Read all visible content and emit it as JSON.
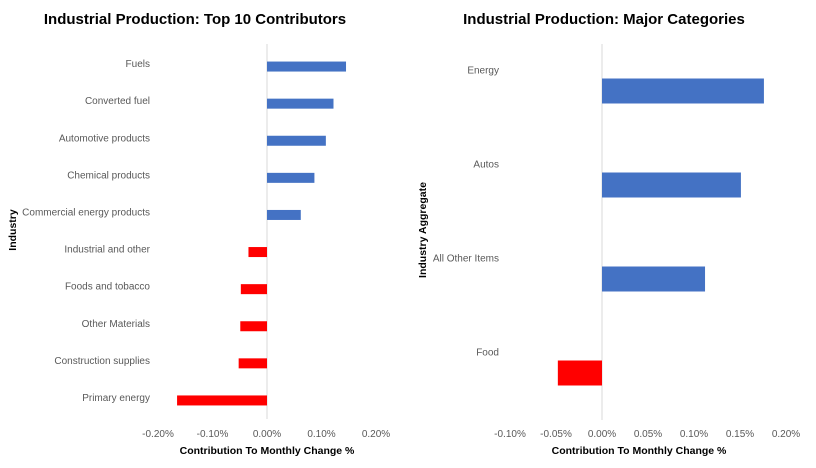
{
  "chart_data": [
    {
      "type": "bar",
      "orientation": "horizontal",
      "title": "Industrial Production: Top 10 Contributors",
      "xlabel": "Contribution To Monthly Change %",
      "ylabel": "Industry",
      "xlim": [
        -0.2,
        0.2
      ],
      "xticks": [
        -0.2,
        -0.1,
        0.0,
        0.1,
        0.2
      ],
      "xtick_labels": [
        "-0.20%",
        "-0.10%",
        "0.00%",
        "0.10%",
        "0.20%"
      ],
      "categories": [
        "Fuels",
        "Converted fuel",
        "Automotive products",
        "Chemical products",
        "Commercial energy products",
        "Industrial and other",
        "Foods and tobacco",
        "Other Materials",
        "Construction supplies",
        "Primary energy"
      ],
      "values": [
        0.145,
        0.122,
        0.108,
        0.087,
        0.062,
        -0.034,
        -0.048,
        -0.049,
        -0.052,
        -0.165
      ],
      "grid": false,
      "colors": {
        "positive": "#4472C4",
        "negative": "#FF0000",
        "zero_line": "#D9D9D9"
      }
    },
    {
      "type": "bar",
      "orientation": "horizontal",
      "title": "Industrial Production: Major Categories",
      "xlabel": "Contribution To Monthly Change %",
      "ylabel": "Industry Aggregate",
      "xlim": [
        -0.1,
        0.2
      ],
      "xticks": [
        -0.1,
        -0.05,
        0.0,
        0.05,
        0.1,
        0.15,
        0.2
      ],
      "xtick_labels": [
        "-0.10%",
        "-0.05%",
        "0.00%",
        "0.05%",
        "0.10%",
        "0.15%",
        "0.20%"
      ],
      "categories": [
        "Energy",
        "Autos",
        "All Other Items",
        "Food"
      ],
      "values": [
        0.176,
        0.151,
        0.112,
        -0.048
      ],
      "grid": false,
      "colors": {
        "positive": "#4472C4",
        "negative": "#FF0000",
        "zero_line": "#D9D9D9"
      }
    }
  ]
}
